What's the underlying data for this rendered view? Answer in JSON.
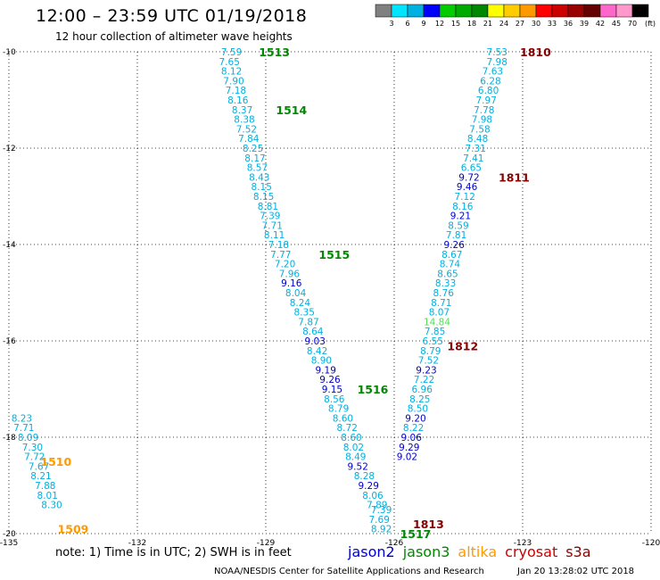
{
  "title": "12:00 – 23:59 UTC 01/19/2018",
  "subtitle": "12 hour collection of altimeter wave heights",
  "note": "note:  1) Time is in UTC;  2) SWH is in feet",
  "credit": "NOAA/NESDIS Center for Satellite Applications and Research",
  "timestamp": "Jan 20 13:28:02 UTC 2018",
  "satellites": [
    {
      "name": "jason2",
      "color": "#0000cc"
    },
    {
      "name": "jason3",
      "color": "#008800"
    },
    {
      "name": "altika",
      "color": "#ff9900"
    },
    {
      "name": "cryosat",
      "color": "#cc0000"
    },
    {
      "name": "s3a",
      "color": "#880000"
    }
  ],
  "color_scale": {
    "labels": [
      "3",
      "6",
      "9",
      "12",
      "15",
      "18",
      "21",
      "24",
      "27",
      "30",
      "33",
      "36",
      "39",
      "42",
      "45",
      "70",
      "(ft)"
    ],
    "colors": [
      "#808080",
      "#00e5ff",
      "#00b0e0",
      "#0000ff",
      "#00cc00",
      "#00aa00",
      "#008800",
      "#ffff00",
      "#ffcc00",
      "#ff9900",
      "#ff0000",
      "#cc0000",
      "#990000",
      "#660000",
      "#ff66cc",
      "#ff99cc",
      "#000000"
    ]
  },
  "map": {
    "lon_ticks": [
      "-135",
      "-132",
      "-129",
      "-126",
      "-123",
      "-120"
    ],
    "lat_ticks": [
      "-10",
      "-12",
      "-14",
      "-16",
      "-18",
      "-20"
    ]
  },
  "pass_labels": [
    {
      "text": "1513",
      "color": "#008800",
      "lon": -128.8,
      "lat": -10.0
    },
    {
      "text": "1514",
      "color": "#008800",
      "lon": -128.4,
      "lat": -11.2
    },
    {
      "text": "1515",
      "color": "#008800",
      "lon": -127.4,
      "lat": -14.2
    },
    {
      "text": "1516",
      "color": "#008800",
      "lon": -126.5,
      "lat": -17.0
    },
    {
      "text": "1517",
      "color": "#008800",
      "lon": -125.5,
      "lat": -20.0
    },
    {
      "text": "1510",
      "color": "#ff9900",
      "lon": -133.9,
      "lat": -18.5
    },
    {
      "text": "1509",
      "color": "#ff9900",
      "lon": -133.5,
      "lat": -19.9
    },
    {
      "text": "1810",
      "color": "#880000",
      "lon": -122.7,
      "lat": -10.0
    },
    {
      "text": "1811",
      "color": "#880000",
      "lon": -123.2,
      "lat": -12.6
    },
    {
      "text": "1812",
      "color": "#880000",
      "lon": -124.4,
      "lat": -16.1
    },
    {
      "text": "1813",
      "color": "#880000",
      "lon": -125.2,
      "lat": -19.8
    }
  ],
  "tracks": [
    {
      "name": "jason3-descending",
      "points": [
        {
          "v": "7.59",
          "lon": -129.8,
          "lat": -10.0,
          "c": "#00b0e0"
        },
        {
          "v": "7.65",
          "lon": -129.85,
          "lat": -10.2,
          "c": "#00b0e0"
        },
        {
          "v": "8.12",
          "lon": -129.8,
          "lat": -10.4,
          "c": "#00b0e0"
        },
        {
          "v": "7.90",
          "lon": -129.75,
          "lat": -10.6,
          "c": "#00b0e0"
        },
        {
          "v": "7.18",
          "lon": -129.7,
          "lat": -10.8,
          "c": "#00b0e0"
        },
        {
          "v": "8.16",
          "lon": -129.65,
          "lat": -11.0,
          "c": "#00b0e0"
        },
        {
          "v": "8.37",
          "lon": -129.55,
          "lat": -11.2,
          "c": "#00b0e0"
        },
        {
          "v": "8.38",
          "lon": -129.5,
          "lat": -11.4,
          "c": "#00b0e0"
        },
        {
          "v": "7.52",
          "lon": -129.45,
          "lat": -11.6,
          "c": "#00b0e0"
        },
        {
          "v": "7.84",
          "lon": -129.4,
          "lat": -11.8,
          "c": "#00b0e0"
        },
        {
          "v": "8.25",
          "lon": -129.3,
          "lat": -12.0,
          "c": "#00b0e0"
        },
        {
          "v": "8.17",
          "lon": -129.25,
          "lat": -12.2,
          "c": "#00b0e0"
        },
        {
          "v": "8.57",
          "lon": -129.2,
          "lat": -12.4,
          "c": "#00b0e0"
        },
        {
          "v": "8.43",
          "lon": -129.15,
          "lat": -12.6,
          "c": "#00b0e0"
        },
        {
          "v": "8.15",
          "lon": -129.1,
          "lat": -12.8,
          "c": "#00b0e0"
        },
        {
          "v": "8.15",
          "lon": -129.05,
          "lat": -13.0,
          "c": "#00b0e0"
        },
        {
          "v": "8.81",
          "lon": -128.95,
          "lat": -13.2,
          "c": "#00b0e0"
        },
        {
          "v": "7.39",
          "lon": -128.9,
          "lat": -13.4,
          "c": "#00b0e0"
        },
        {
          "v": "7.71",
          "lon": -128.85,
          "lat": -13.6,
          "c": "#00b0e0"
        },
        {
          "v": "8.11",
          "lon": -128.8,
          "lat": -13.8,
          "c": "#00b0e0"
        },
        {
          "v": "7.18",
          "lon": -128.7,
          "lat": -14.0,
          "c": "#00b0e0"
        },
        {
          "v": "7.77",
          "lon": -128.65,
          "lat": -14.2,
          "c": "#00b0e0"
        },
        {
          "v": "7.20",
          "lon": -128.55,
          "lat": -14.4,
          "c": "#00b0e0"
        },
        {
          "v": "7.96",
          "lon": -128.45,
          "lat": -14.6,
          "c": "#00b0e0"
        },
        {
          "v": "9.16",
          "lon": -128.4,
          "lat": -14.8,
          "c": "#0000cc"
        },
        {
          "v": "8.04",
          "lon": -128.3,
          "lat": -15.0,
          "c": "#00b0e0"
        },
        {
          "v": "8.24",
          "lon": -128.2,
          "lat": -15.2,
          "c": "#00b0e0"
        },
        {
          "v": "8.35",
          "lon": -128.1,
          "lat": -15.4,
          "c": "#00b0e0"
        },
        {
          "v": "7.87",
          "lon": -128.0,
          "lat": -15.6,
          "c": "#00b0e0"
        },
        {
          "v": "8.64",
          "lon": -127.9,
          "lat": -15.8,
          "c": "#00b0e0"
        },
        {
          "v": "9.03",
          "lon": -127.85,
          "lat": -16.0,
          "c": "#0000cc"
        },
        {
          "v": "8.42",
          "lon": -127.8,
          "lat": -16.2,
          "c": "#00b0e0"
        },
        {
          "v": "8.90",
          "lon": -127.7,
          "lat": -16.4,
          "c": "#00b0e0"
        },
        {
          "v": "9.19",
          "lon": -127.6,
          "lat": -16.6,
          "c": "#0000cc"
        },
        {
          "v": "9.26",
          "lon": -127.5,
          "lat": -16.8,
          "c": "#0000cc"
        },
        {
          "v": "9.15",
          "lon": -127.45,
          "lat": -17.0,
          "c": "#0000cc"
        },
        {
          "v": "8.56",
          "lon": -127.4,
          "lat": -17.2,
          "c": "#00b0e0"
        },
        {
          "v": "8.79",
          "lon": -127.3,
          "lat": -17.4,
          "c": "#00b0e0"
        },
        {
          "v": "8.60",
          "lon": -127.2,
          "lat": -17.6,
          "c": "#00b0e0"
        },
        {
          "v": "8.72",
          "lon": -127.1,
          "lat": -17.8,
          "c": "#00b0e0"
        },
        {
          "v": "8.60",
          "lon": -127.0,
          "lat": -18.0,
          "c": "#00b0e0"
        },
        {
          "v": "8.02",
          "lon": -126.95,
          "lat": -18.2,
          "c": "#00b0e0"
        },
        {
          "v": "8.49",
          "lon": -126.9,
          "lat": -18.4,
          "c": "#00b0e0"
        },
        {
          "v": "9.52",
          "lon": -126.85,
          "lat": -18.6,
          "c": "#0000cc"
        },
        {
          "v": "8.28",
          "lon": -126.7,
          "lat": -18.8,
          "c": "#00b0e0"
        },
        {
          "v": "9.29",
          "lon": -126.6,
          "lat": -19.0,
          "c": "#0000cc"
        },
        {
          "v": "8.06",
          "lon": -126.5,
          "lat": -19.2,
          "c": "#00b0e0"
        },
        {
          "v": "7.89",
          "lon": -126.4,
          "lat": -19.4,
          "c": "#00b0e0"
        },
        {
          "v": "7.39",
          "lon": -126.3,
          "lat": -19.5,
          "c": "#00b0e0"
        },
        {
          "v": "7.69",
          "lon": -126.35,
          "lat": -19.7,
          "c": "#00b0e0"
        },
        {
          "v": "8.92",
          "lon": -126.3,
          "lat": -19.9,
          "c": "#00b0e0"
        }
      ]
    },
    {
      "name": "cryosat-ascending",
      "points": [
        {
          "v": "7.53",
          "lon": -123.6,
          "lat": -10.0,
          "c": "#00b0e0"
        },
        {
          "v": "7.98",
          "lon": -123.6,
          "lat": -10.2,
          "c": "#00b0e0"
        },
        {
          "v": "7.63",
          "lon": -123.7,
          "lat": -10.4,
          "c": "#00b0e0"
        },
        {
          "v": "6.28",
          "lon": -123.75,
          "lat": -10.6,
          "c": "#00b0e0"
        },
        {
          "v": "6.80",
          "lon": -123.8,
          "lat": -10.8,
          "c": "#00b0e0"
        },
        {
          "v": "7.97",
          "lon": -123.85,
          "lat": -11.0,
          "c": "#00b0e0"
        },
        {
          "v": "7.78",
          "lon": -123.9,
          "lat": -11.2,
          "c": "#00b0e0"
        },
        {
          "v": "7.98",
          "lon": -123.95,
          "lat": -11.4,
          "c": "#00b0e0"
        },
        {
          "v": "7.58",
          "lon": -124.0,
          "lat": -11.6,
          "c": "#00b0e0"
        },
        {
          "v": "8.48",
          "lon": -124.05,
          "lat": -11.8,
          "c": "#00b0e0"
        },
        {
          "v": "7.31",
          "lon": -124.1,
          "lat": -12.0,
          "c": "#00b0e0"
        },
        {
          "v": "7.41",
          "lon": -124.15,
          "lat": -12.2,
          "c": "#00b0e0"
        },
        {
          "v": "6.65",
          "lon": -124.2,
          "lat": -12.4,
          "c": "#00b0e0"
        },
        {
          "v": "9.72",
          "lon": -124.25,
          "lat": -12.6,
          "c": "#0000cc"
        },
        {
          "v": "9.46",
          "lon": -124.3,
          "lat": -12.8,
          "c": "#0000cc"
        },
        {
          "v": "7.12",
          "lon": -124.35,
          "lat": -13.0,
          "c": "#00b0e0"
        },
        {
          "v": "8.16",
          "lon": -124.4,
          "lat": -13.2,
          "c": "#00b0e0"
        },
        {
          "v": "9.21",
          "lon": -124.45,
          "lat": -13.4,
          "c": "#0000cc"
        },
        {
          "v": "8.59",
          "lon": -124.5,
          "lat": -13.6,
          "c": "#00b0e0"
        },
        {
          "v": "7.81",
          "lon": -124.55,
          "lat": -13.8,
          "c": "#00b0e0"
        },
        {
          "v": "9.26",
          "lon": -124.6,
          "lat": -14.0,
          "c": "#0000cc"
        },
        {
          "v": "8.67",
          "lon": -124.65,
          "lat": -14.2,
          "c": "#00b0e0"
        },
        {
          "v": "8.74",
          "lon": -124.7,
          "lat": -14.4,
          "c": "#00b0e0"
        },
        {
          "v": "8.65",
          "lon": -124.75,
          "lat": -14.6,
          "c": "#00b0e0"
        },
        {
          "v": "8.33",
          "lon": -124.8,
          "lat": -14.8,
          "c": "#00b0e0"
        },
        {
          "v": "8.76",
          "lon": -124.85,
          "lat": -15.0,
          "c": "#00b0e0"
        },
        {
          "v": "8.71",
          "lon": -124.9,
          "lat": -15.2,
          "c": "#00b0e0"
        },
        {
          "v": "8.07",
          "lon": -124.95,
          "lat": -15.4,
          "c": "#00b0e0"
        },
        {
          "v": "14.84",
          "lon": -125.0,
          "lat": -15.6,
          "c": "#55dd55"
        },
        {
          "v": "7.85",
          "lon": -125.05,
          "lat": -15.8,
          "c": "#00b0e0"
        },
        {
          "v": "6.55",
          "lon": -125.1,
          "lat": -16.0,
          "c": "#00b0e0"
        },
        {
          "v": "8.79",
          "lon": -125.15,
          "lat": -16.2,
          "c": "#00b0e0"
        },
        {
          "v": "7.52",
          "lon": -125.2,
          "lat": -16.4,
          "c": "#00b0e0"
        },
        {
          "v": "9.23",
          "lon": -125.25,
          "lat": -16.6,
          "c": "#0000cc"
        },
        {
          "v": "7.22",
          "lon": -125.3,
          "lat": -16.8,
          "c": "#00b0e0"
        },
        {
          "v": "6.96",
          "lon": -125.35,
          "lat": -17.0,
          "c": "#00b0e0"
        },
        {
          "v": "8.25",
          "lon": -125.4,
          "lat": -17.2,
          "c": "#00b0e0"
        },
        {
          "v": "8.50",
          "lon": -125.45,
          "lat": -17.4,
          "c": "#00b0e0"
        },
        {
          "v": "9.20",
          "lon": -125.5,
          "lat": -17.6,
          "c": "#0000cc"
        },
        {
          "v": "8.22",
          "lon": -125.55,
          "lat": -17.8,
          "c": "#00b0e0"
        },
        {
          "v": "9.06",
          "lon": -125.6,
          "lat": -18.0,
          "c": "#0000cc"
        },
        {
          "v": "9.29",
          "lon": -125.65,
          "lat": -18.2,
          "c": "#0000cc"
        },
        {
          "v": "9.02",
          "lon": -125.7,
          "lat": -18.4,
          "c": "#0000cc"
        }
      ]
    },
    {
      "name": "altika-left",
      "points": [
        {
          "v": "8.23",
          "lon": -134.7,
          "lat": -17.6,
          "c": "#00b0e0"
        },
        {
          "v": "7.71",
          "lon": -134.65,
          "lat": -17.8,
          "c": "#00b0e0"
        },
        {
          "v": "8.09",
          "lon": -134.55,
          "lat": -18.0,
          "c": "#00b0e0"
        },
        {
          "v": "7.30",
          "lon": -134.45,
          "lat": -18.2,
          "c": "#00b0e0"
        },
        {
          "v": "7.72",
          "lon": -134.4,
          "lat": -18.4,
          "c": "#00b0e0"
        },
        {
          "v": "7.67",
          "lon": -134.3,
          "lat": -18.6,
          "c": "#00b0e0"
        },
        {
          "v": "8.21",
          "lon": -134.25,
          "lat": -18.8,
          "c": "#00b0e0"
        },
        {
          "v": "7.88",
          "lon": -134.15,
          "lat": -19.0,
          "c": "#00b0e0"
        },
        {
          "v": "8.01",
          "lon": -134.1,
          "lat": -19.2,
          "c": "#00b0e0"
        },
        {
          "v": "8.30",
          "lon": -134.0,
          "lat": -19.4,
          "c": "#00b0e0"
        }
      ]
    }
  ]
}
